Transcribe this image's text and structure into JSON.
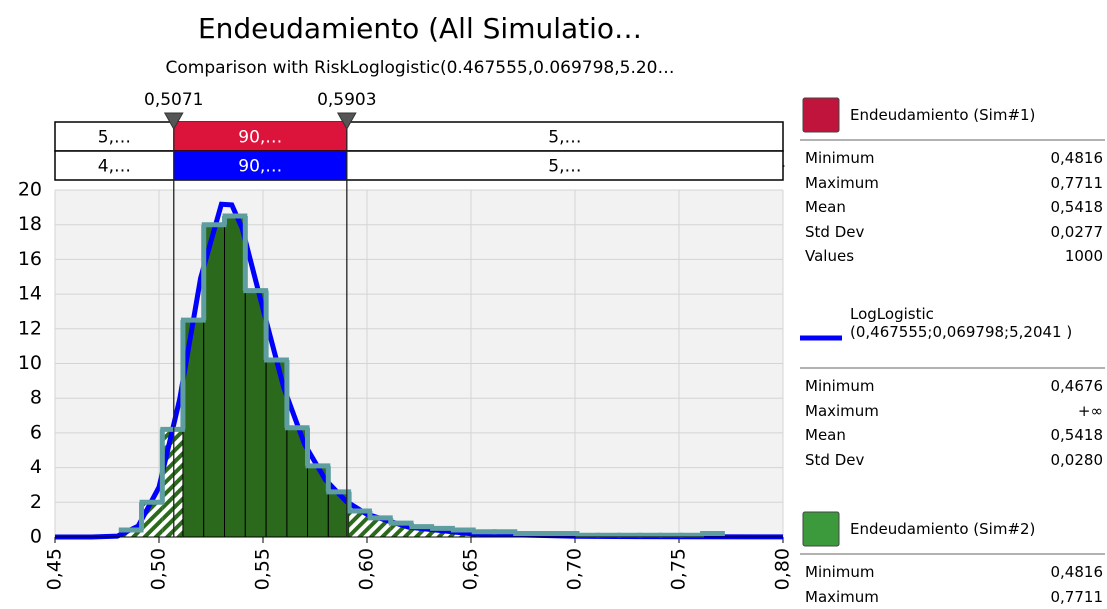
{
  "chart_data": {
    "type": "histogram",
    "title": "Endeudamiento (All Simulatio…",
    "subtitle": "Comparison with RiskLoglogistic(0.467555,0.069798,5.20…",
    "xlim": [
      0.45,
      0.8
    ],
    "ylim": [
      0,
      20
    ],
    "xticks": [
      {
        "value": 0.45,
        "label": "0,45"
      },
      {
        "value": 0.5,
        "label": "0,50"
      },
      {
        "value": 0.55,
        "label": "0,55"
      },
      {
        "value": 0.6,
        "label": "0,60"
      },
      {
        "value": 0.65,
        "label": "0,65"
      },
      {
        "value": 0.7,
        "label": "0,70"
      },
      {
        "value": 0.75,
        "label": "0,75"
      },
      {
        "value": 0.8,
        "label": "0,80"
      }
    ],
    "yticks": [
      0,
      2,
      4,
      6,
      8,
      10,
      12,
      14,
      16,
      18,
      20
    ],
    "grid": true,
    "delimiters": [
      {
        "value": 0.5071,
        "label": "0,5071"
      },
      {
        "value": 0.5903,
        "label": "0,5903"
      }
    ],
    "delimiter_rows": [
      {
        "color": "#dc143c",
        "labels": [
          "5,…",
          "90,…",
          "5,…"
        ]
      },
      {
        "color": "#0000ff",
        "labels": [
          "4,…",
          "90,…",
          "5,…"
        ]
      }
    ],
    "histogram": {
      "color": "#2b6a1c",
      "outline": "#5f9ea0",
      "bins": [
        0.4816,
        0.4916,
        0.5016,
        0.5115,
        0.5215,
        0.5315,
        0.5415,
        0.5515,
        0.5615,
        0.5714,
        0.5814,
        0.5914,
        0.6014,
        0.6114,
        0.6214,
        0.6313,
        0.6413,
        0.6513,
        0.6613,
        0.6713,
        0.6813,
        0.6912,
        0.7012,
        0.7112,
        0.7212,
        0.7312,
        0.7412,
        0.7511,
        0.7611,
        0.7711
      ],
      "values": [
        0.4,
        2.0,
        6.2,
        12.5,
        18.0,
        18.5,
        14.2,
        10.2,
        6.3,
        4.1,
        2.6,
        1.5,
        1.1,
        0.8,
        0.6,
        0.5,
        0.4,
        0.3,
        0.3,
        0.2,
        0.2,
        0.2,
        0.1,
        0.1,
        0.1,
        0.1,
        0.1,
        0.1,
        0.2
      ]
    },
    "curve": {
      "color": "#0000ff",
      "x": [
        0.45,
        0.4676,
        0.48,
        0.49,
        0.5,
        0.51,
        0.52,
        0.53,
        0.535,
        0.54,
        0.55,
        0.56,
        0.57,
        0.58,
        0.59,
        0.6,
        0.62,
        0.65,
        0.7,
        0.75,
        0.8
      ],
      "values": [
        0,
        0,
        0.05,
        0.63,
        2.87,
        7.97,
        14.92,
        19.18,
        19.14,
        17.79,
        13.15,
        8.6,
        5.34,
        3.3,
        2.05,
        1.31,
        0.57,
        0.19,
        0.04,
        0.013,
        0.005
      ]
    },
    "stats_panel": [
      {
        "name": "Endeudamiento (Sim#1)",
        "color": "#c0143c",
        "marker": "box",
        "rows": [
          [
            "Minimum",
            "0,4816"
          ],
          [
            "Maximum",
            "0,7711"
          ],
          [
            "Mean",
            "0,5418"
          ],
          [
            "Std Dev",
            "0,0277"
          ],
          [
            "Values",
            "1000"
          ]
        ]
      },
      {
        "name": "LogLogistic (0,467555;0,069798;5,2041 )",
        "color": "#0000ff",
        "marker": "line",
        "rows": [
          [
            "Minimum",
            "0,4676"
          ],
          [
            "Maximum",
            "+∞"
          ],
          [
            "Mean",
            "0,5418"
          ],
          [
            "Std Dev",
            "0,0280"
          ]
        ]
      },
      {
        "name": "Endeudamiento (Sim#2)",
        "color": "#3c9a3c",
        "marker": "box",
        "rows": [
          [
            "Minimum",
            "0,4816"
          ],
          [
            "Maximum",
            "0,7711"
          ]
        ]
      }
    ]
  }
}
